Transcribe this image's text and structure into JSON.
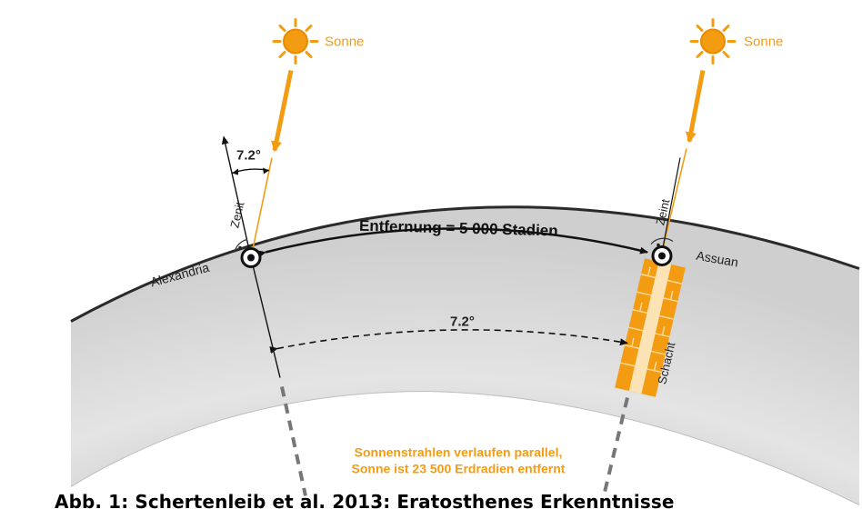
{
  "diagram": {
    "sun_left_label": "Sonne",
    "sun_right_label": "Sonne",
    "angle_top_label": "7.2°",
    "angle_center_label": "7.2°",
    "zenit_left_label": "Zenit",
    "zenit_right_label": "Zeint",
    "city_left_label": "Alexandria",
    "city_right_label": "Assuan",
    "distance_label": "Entfernung = 5 000 Stadien",
    "shaft_label": "Schacht",
    "note_line1": "Sonnenstrahlen verlaufen parallel,",
    "note_line2": "Sonne ist 23 500 Erdradien entfernt",
    "colors": {
      "sun": "#f39c12",
      "sun_outline": "#e88a00",
      "ray": "#f39c12",
      "earth_fill": "#dcdcdc",
      "earth_edge": "#333333",
      "note_text": "#f39c12",
      "text": "#222222"
    }
  },
  "caption": "Abb. 1: Schertenleib et al. 2013: Eratosthenes Erkenntnisse"
}
